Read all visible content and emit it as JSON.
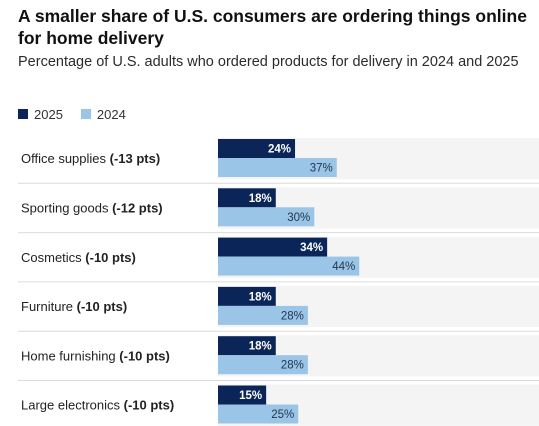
{
  "title": "A smaller share of U.S. consumers are ordering things online for home delivery",
  "subtitle": "Percentage of U.S. adults who ordered products for delivery in 2024 and 2025",
  "colors": {
    "series_2025": "#0b2559",
    "series_2024": "#9ac5e6",
    "row_band": "#f4f4f4",
    "divider": "#dcdcdc"
  },
  "chart_data": {
    "type": "bar",
    "orientation": "horizontal",
    "title": "A smaller share of U.S. consumers are ordering things online for home delivery",
    "subtitle": "Percentage of U.S. adults who ordered products for delivery in 2024 and 2025",
    "categories": [
      "Office supplies",
      "Sporting goods",
      "Cosmetics",
      "Furniture",
      "Home furnishing",
      "Large electronics"
    ],
    "category_changes": [
      "(-13 pts)",
      "(-12 pts)",
      "(-10 pts)",
      "(-10 pts)",
      "(-10 pts)",
      "(-10 pts)"
    ],
    "series": [
      {
        "name": "2025",
        "values": [
          24,
          18,
          34,
          18,
          18,
          15
        ]
      },
      {
        "name": "2024",
        "values": [
          37,
          30,
          44,
          28,
          28,
          25
        ]
      }
    ],
    "value_suffix": "%",
    "xlim": [
      0,
      100
    ],
    "legend_position": "top-left",
    "grid": false
  }
}
